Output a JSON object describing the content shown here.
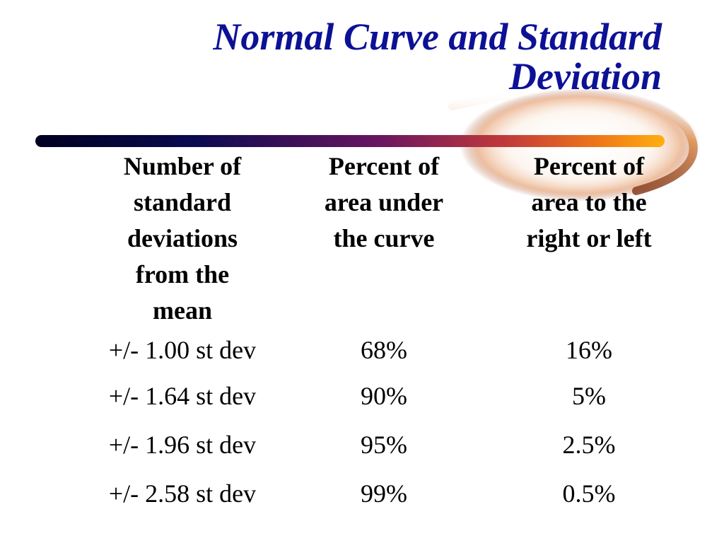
{
  "slide": {
    "title_line1": "Normal Curve and Standard",
    "title_line2": "Deviation"
  },
  "table": {
    "headers": [
      {
        "lines": [
          "Number of",
          "standard",
          "deviations",
          "from the",
          "mean"
        ]
      },
      {
        "lines": [
          "Percent of",
          "area under",
          "the curve"
        ]
      },
      {
        "lines": [
          "Percent of",
          "area to the",
          "right or left"
        ]
      }
    ],
    "rows": [
      [
        "+/- 1.00 st dev",
        "68%",
        "16%"
      ],
      [
        "+/- 1.64 st dev",
        "90%",
        "5%"
      ],
      [
        "+/- 1.96 st dev",
        "95%",
        "2.5%"
      ],
      [
        "+/- 2.58 st dev",
        "99%",
        "0.5%"
      ]
    ]
  },
  "colors": {
    "title": "#0d1196",
    "bar_start": "#000033",
    "bar_mid": "#8a1c5a",
    "bar_end": "#ffa200"
  }
}
